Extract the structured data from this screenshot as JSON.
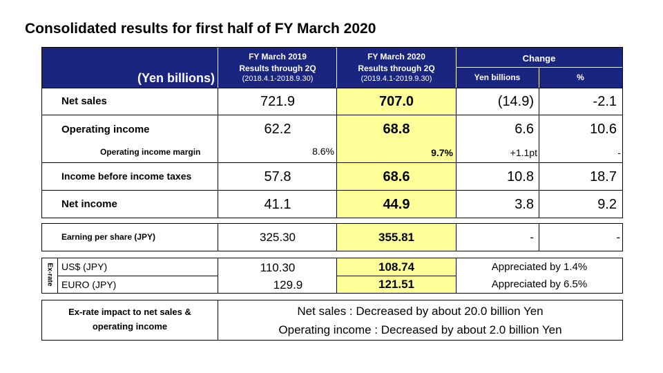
{
  "title": "Consolidated results for first half of FY March 2020",
  "header": {
    "unit": "(Yen billions)",
    "col2019_line1": "FY March 2019",
    "col2019_line2": "Results through 2Q",
    "col2019_line3": "(2018.4.1-2018.9.30)",
    "col2020_line1": "FY March 2020",
    "col2020_line2": "Results through 2Q",
    "col2020_line3": "(2019.4.1-2019.9.30)",
    "change": "Change",
    "change_yen": "Yen billions",
    "change_pct": "%"
  },
  "rows": {
    "net_sales": {
      "label": "Net sales",
      "fy2019": "721.9",
      "fy2020": "707.0",
      "chg_yen": "(14.9)",
      "chg_pct": "-2.1"
    },
    "operating_income": {
      "label": "Operating income",
      "fy2019": "62.2",
      "fy2020": "68.8",
      "chg_yen": "6.6",
      "chg_pct": "10.6"
    },
    "operating_margin": {
      "label": "Operating income margin",
      "fy2019": "8.6%",
      "fy2020": "9.7%",
      "chg_yen": "+1.1pt",
      "chg_pct": "-"
    },
    "income_before_tax": {
      "label": "Income before income taxes",
      "fy2019": "57.8",
      "fy2020": "68.6",
      "chg_yen": "10.8",
      "chg_pct": "18.7"
    },
    "net_income": {
      "label": "Net income",
      "fy2019": "41.1",
      "fy2020": "44.9",
      "chg_yen": "3.8",
      "chg_pct": "9.2"
    }
  },
  "eps": {
    "label": "Earning per share (JPY)",
    "fy2019": "325.30",
    "fy2020": "355.81",
    "chg_yen": "-",
    "chg_pct": "-"
  },
  "exrate": {
    "side_label": "Ex-rate",
    "usd": {
      "label": "US$ (JPY)",
      "fy2019": "110.30",
      "fy2020": "108.74",
      "change": "Appreciated by 1.4%"
    },
    "euro": {
      "label": "EURO (JPY)",
      "fy2019": "129.9",
      "fy2020": "121.51",
      "change": "Appreciated by 6.5%"
    }
  },
  "impact": {
    "label_line1": "Ex-rate impact to net sales &",
    "label_line2": "operating income",
    "line1": "Net sales : Decreased by about 20.0 billion Yen",
    "line2": "Operating income : Decreased by about 2.0 billion Yen"
  },
  "colors": {
    "header_bg": "#1a2580",
    "highlight": "#ffff99"
  }
}
